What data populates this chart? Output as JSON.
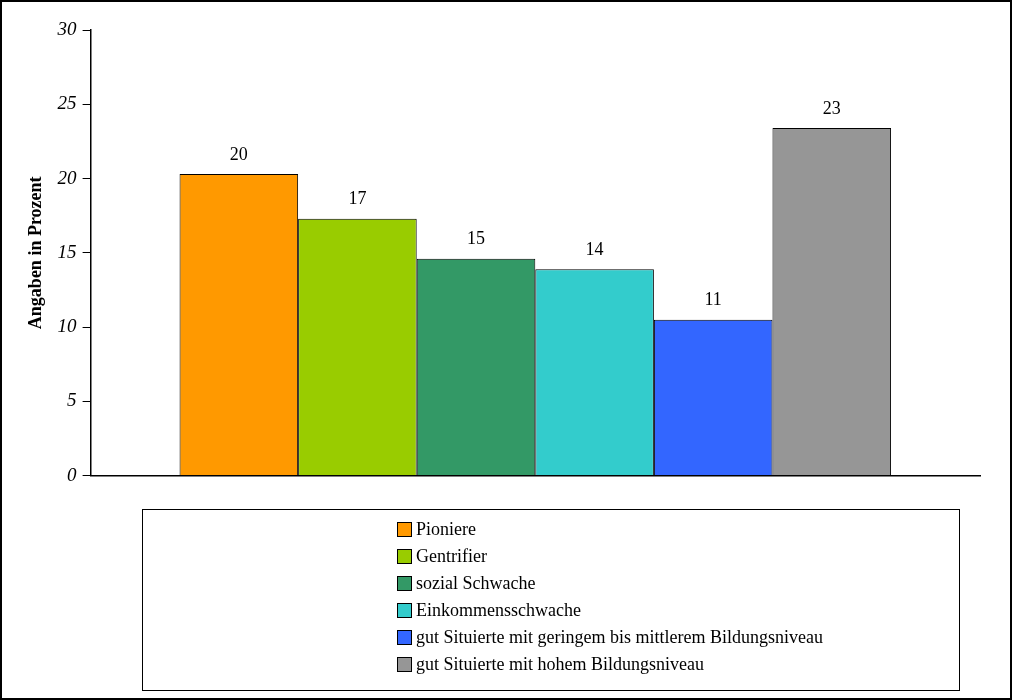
{
  "chart_data": {
    "type": "bar",
    "ylabel": "Angaben in Prozent",
    "categories": [
      null
    ],
    "series": [
      {
        "name": "Pioniere",
        "color": "#ff9900",
        "values": [
          20.3
        ],
        "value_labels": [
          "20"
        ]
      },
      {
        "name": "Gentrifier",
        "color": "#99cc00",
        "values": [
          17.3
        ],
        "value_labels": [
          "17"
        ]
      },
      {
        "name": "sozial Schwache",
        "color": "#339966",
        "values": [
          14.6
        ],
        "value_labels": [
          "15"
        ]
      },
      {
        "name": "Einkommensschwache",
        "color": "#33cccc",
        "values": [
          13.9
        ],
        "value_labels": [
          "14"
        ]
      },
      {
        "name": "gut Situierte mit geringem bis mittlerem Bildungsniveau",
        "color": "#3366ff",
        "values": [
          10.5
        ],
        "value_labels": [
          "11"
        ]
      },
      {
        "name": "gut Situierte mit hohem Bildungsniveau",
        "color": "#969696",
        "values": [
          23.4
        ],
        "value_labels": [
          "23"
        ]
      }
    ],
    "ylim": [
      0,
      30
    ],
    "yticks": [
      0,
      5,
      10,
      15,
      20,
      25,
      30
    ],
    "grid": false,
    "legend": "bottom"
  }
}
